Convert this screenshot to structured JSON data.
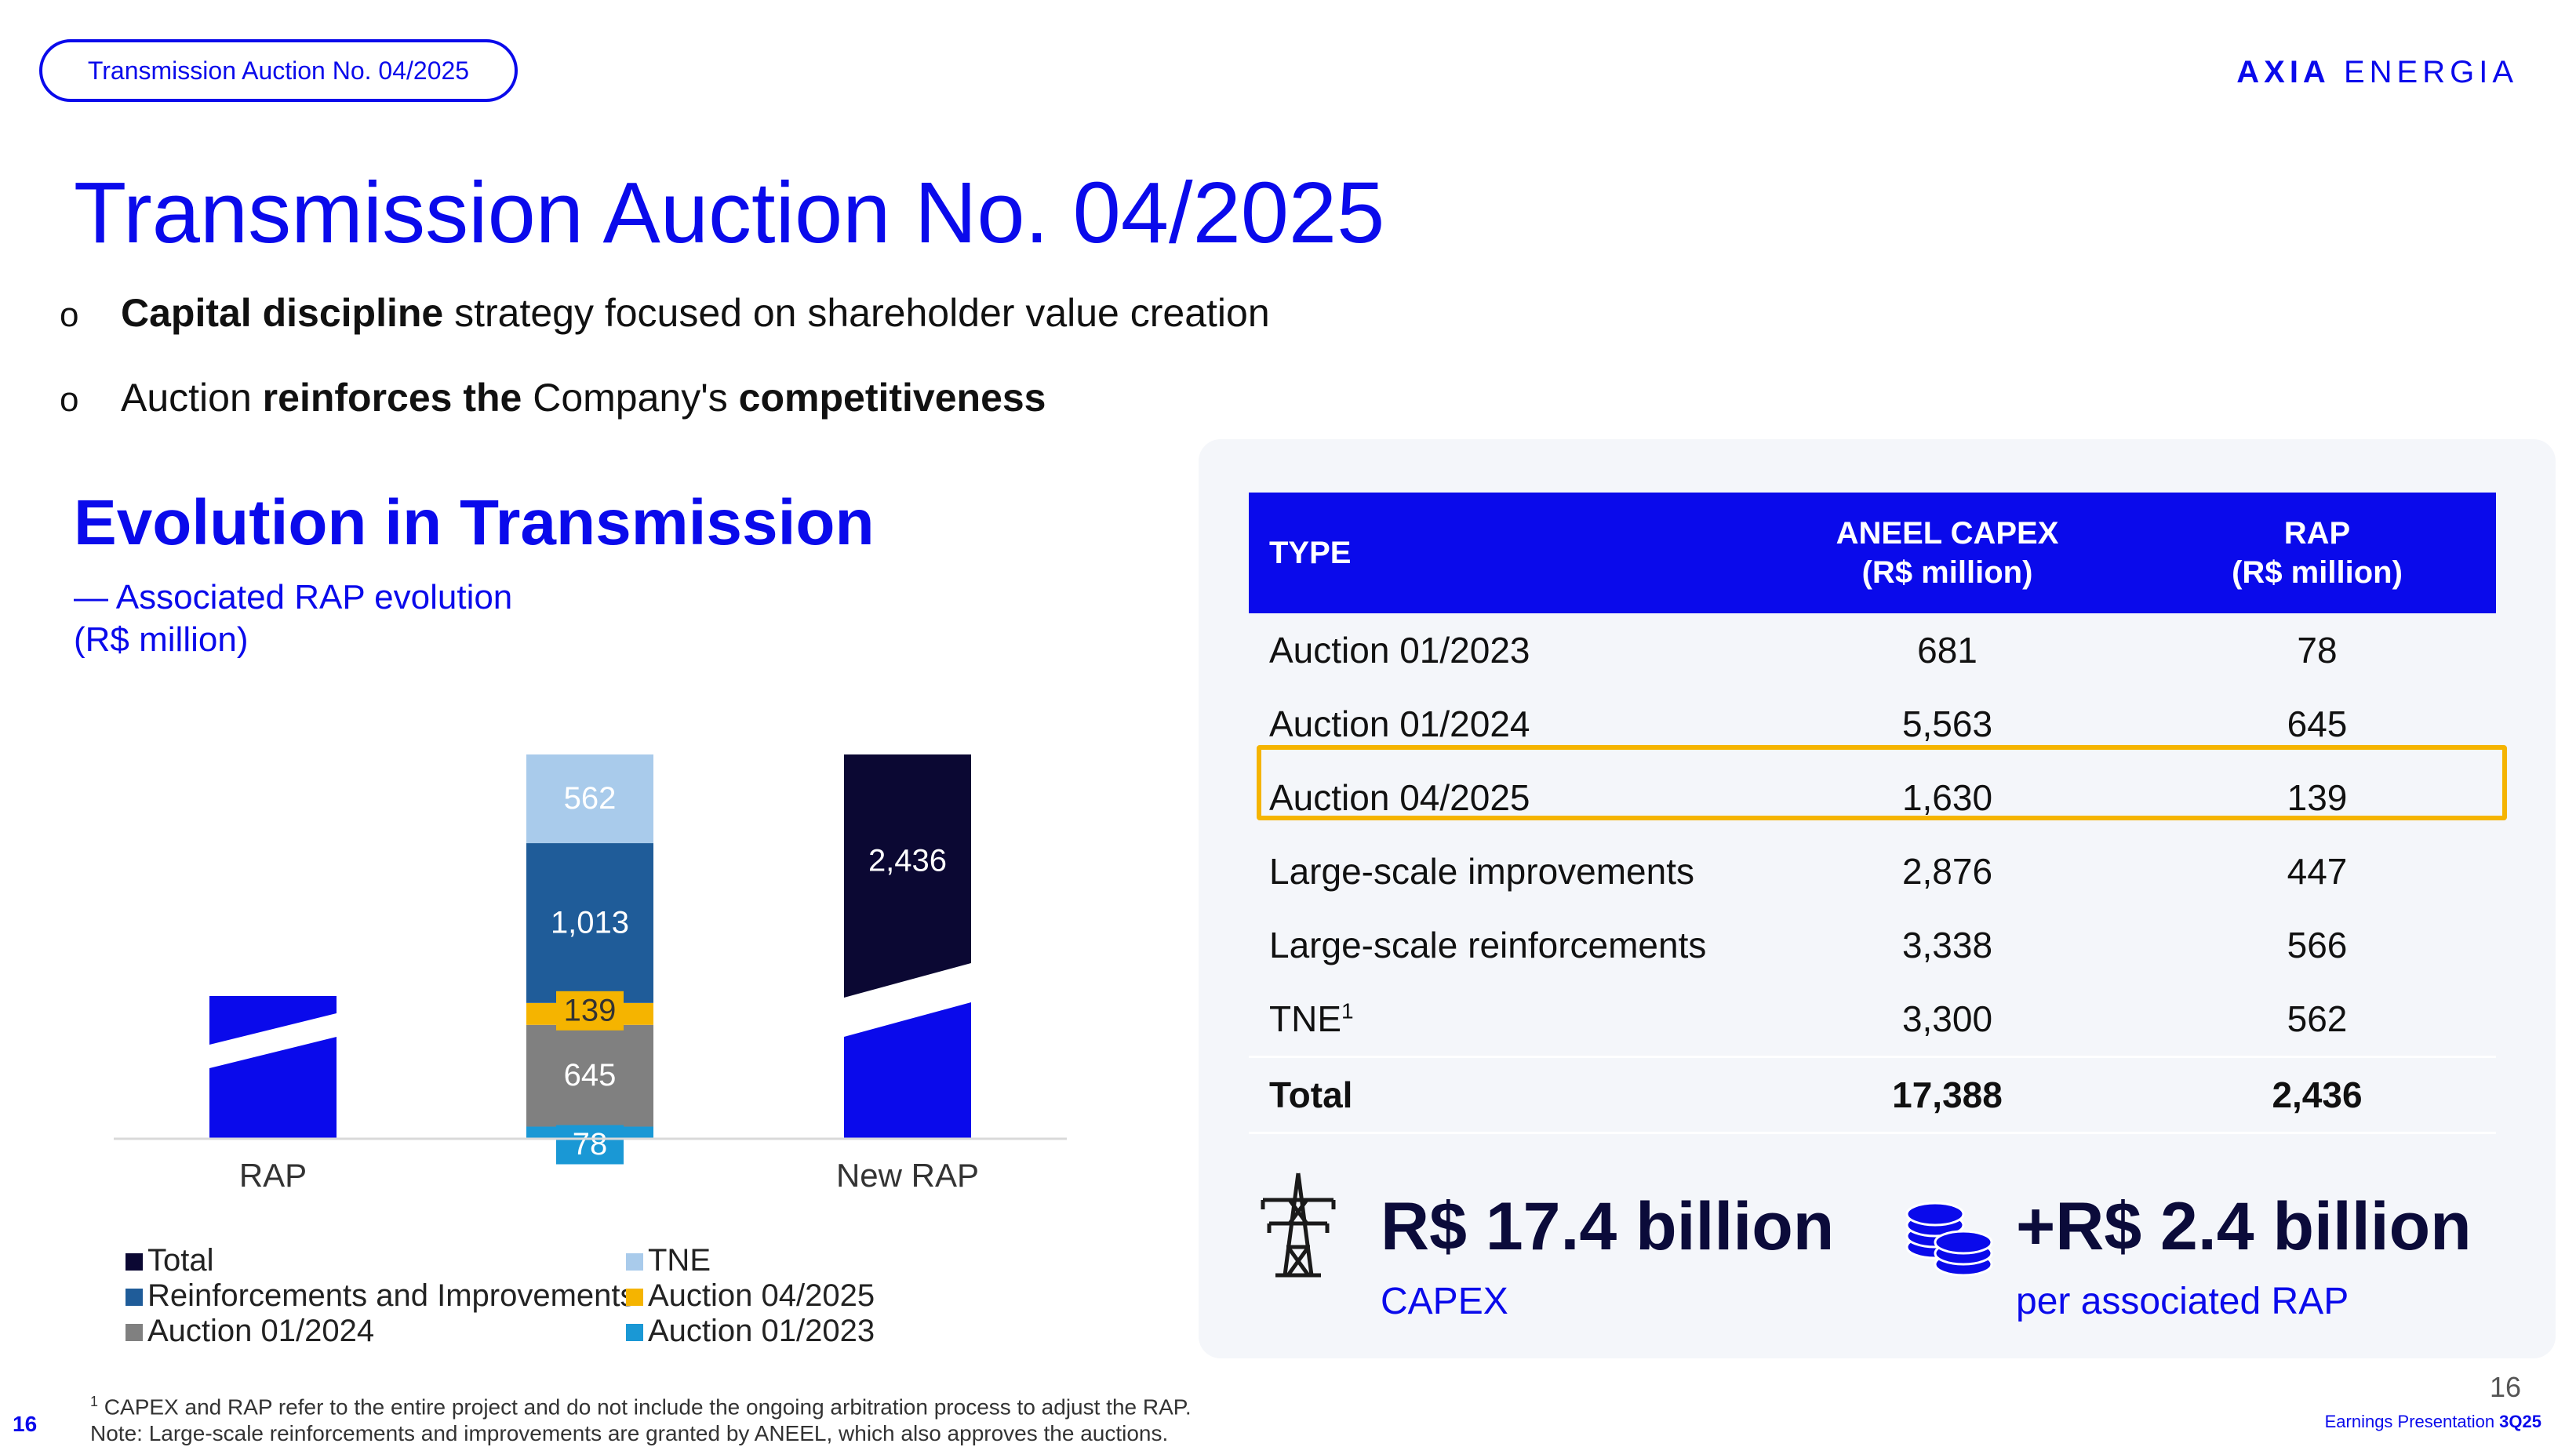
{
  "header": {
    "pill_label": "Transmission Auction No. 04/2025",
    "brand_strong": "AXIA",
    "brand_light": "ENERGIA"
  },
  "title": "Transmission Auction No. 04/2025",
  "bullets": [
    {
      "b1": "Capital discipline",
      "t1": " strategy focused on shareholder value creation"
    },
    {
      "t0": "Auction ",
      "b1": "reinforces the",
      "t1": " Company's ",
      "b2": "competitiveness"
    }
  ],
  "section": {
    "title": "Evolution in Transmission",
    "note_line1": "— Associated RAP evolution",
    "note_line2": "(R$ million)"
  },
  "chart_data": {
    "type": "bar",
    "stacked": true,
    "categories": [
      "RAP",
      "",
      "New RAP"
    ],
    "series": [
      {
        "name": "Total",
        "color": "#0B0833",
        "values": [
          null,
          null,
          2436
        ]
      },
      {
        "name": "Auction 01/2023",
        "color": "#1A98D5",
        "values": [
          null,
          78,
          null
        ]
      },
      {
        "name": "Auction 01/2024",
        "color": "#808080",
        "values": [
          null,
          645,
          null
        ]
      },
      {
        "name": "Auction 04/2025",
        "color": "#F5B400",
        "values": [
          null,
          139,
          null
        ]
      },
      {
        "name": "Reinforcements and Improvements",
        "color": "#1F5C99",
        "values": [
          null,
          1013,
          null
        ]
      },
      {
        "name": "TNE",
        "color": "#A9CBEB",
        "values": [
          null,
          562,
          null
        ]
      }
    ],
    "data_labels": [
      "562",
      "1,013",
      "139",
      "645",
      "78",
      "2,436"
    ],
    "legend_position": "bottom",
    "grid": false,
    "accent": "#0A0AEB"
  },
  "legend": {
    "total": "Total",
    "tne": "TNE",
    "reinf": "Reinforcements and Improvements",
    "a0425": "Auction 04/2025",
    "a0124": "Auction 01/2024",
    "a0123": "Auction 01/2023"
  },
  "table": {
    "headers": {
      "type": "TYPE",
      "capex_l1": "ANEEL CAPEX",
      "capex_l2": "(R$ million)",
      "rap_l1": "RAP",
      "rap_l2": "(R$ million)"
    },
    "rows": [
      {
        "type": "Auction 01/2023",
        "capex": "681",
        "rap": "78"
      },
      {
        "type": "Auction 01/2024",
        "capex": "5,563",
        "rap": "645"
      },
      {
        "type": "Auction 04/2025",
        "capex": "1,630",
        "rap": "139"
      },
      {
        "type": "Large-scale improvements",
        "capex": "2,876",
        "rap": "447"
      },
      {
        "type": "Large-scale reinforcements",
        "capex": "3,338",
        "rap": "566"
      },
      {
        "type": "TNE",
        "sup": "1",
        "capex": "3,300",
        "rap": "562"
      }
    ],
    "total": {
      "type": "Total",
      "capex": "17,388",
      "rap": "2,436"
    },
    "highlight_color": "#F5B400"
  },
  "kpis": {
    "capex_value": "R$ 17.4 billion",
    "capex_label": "CAPEX",
    "rap_value": "+R$ 2.4 billion",
    "rap_label": "per associated RAP",
    "capex_icon": "transmission-tower-icon",
    "rap_icon": "coins-icon"
  },
  "footnotes": {
    "sup": "1",
    "line1": " CAPEX and RAP refer to the entire project and do not include the ongoing arbitration process to adjust the RAP.",
    "line2": "Note: Large-scale reinforcements and improvements are granted by ANEEL, which also approves the auctions."
  },
  "page": {
    "number_left": "16",
    "number_right": "16",
    "earnings_text": "Earnings Presentation ",
    "earnings_bold": "3Q25"
  }
}
